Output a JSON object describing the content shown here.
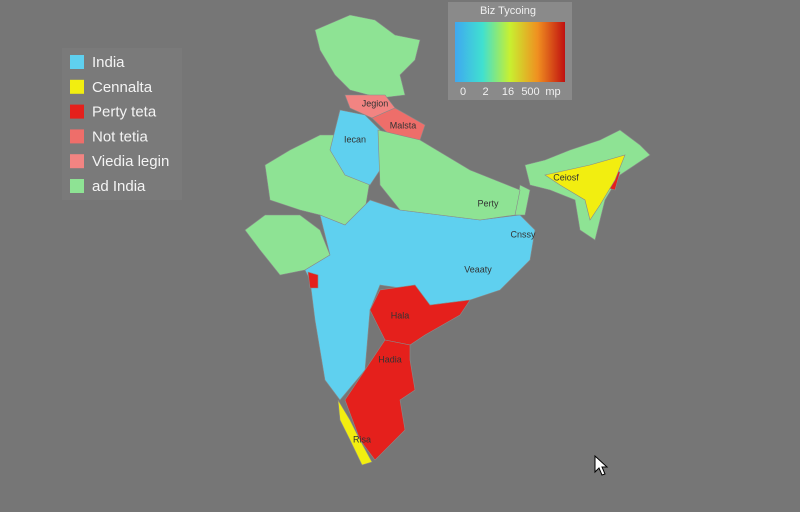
{
  "legend": {
    "items": [
      {
        "label": "India",
        "color": "#5fd0ef"
      },
      {
        "label": "Cennalta",
        "color": "#f2ee10"
      },
      {
        "label": "Perty teta",
        "color": "#e5201c"
      },
      {
        "label": "Not tetia",
        "color": "#ee6e6a"
      },
      {
        "label": "Viedia legin",
        "color": "#f28482"
      },
      {
        "label": "ad India",
        "color": "#8ee394"
      }
    ]
  },
  "colorbar": {
    "title": "Biz Tycoing",
    "ticks": [
      "0",
      "2",
      "16",
      "500",
      "mp"
    ]
  },
  "regions": [
    {
      "label": "Jegion",
      "color": "#f28482"
    },
    {
      "label": "Malsta",
      "color": "#ee6e6a"
    },
    {
      "label": "Iecan",
      "color": "#5fd0ef"
    },
    {
      "label": "Perty",
      "color": "#8ee394"
    },
    {
      "label": "Cnssy",
      "color": "#5fd0ef"
    },
    {
      "label": "Veaaty",
      "color": "#5fd0ef"
    },
    {
      "label": "Hala",
      "color": "#e5201c"
    },
    {
      "label": "Hadia",
      "color": "#e5201c"
    },
    {
      "label": "Ceiosf",
      "color": "#f2ee10"
    },
    {
      "label": "Risa",
      "color": "#f2ee10"
    }
  ]
}
